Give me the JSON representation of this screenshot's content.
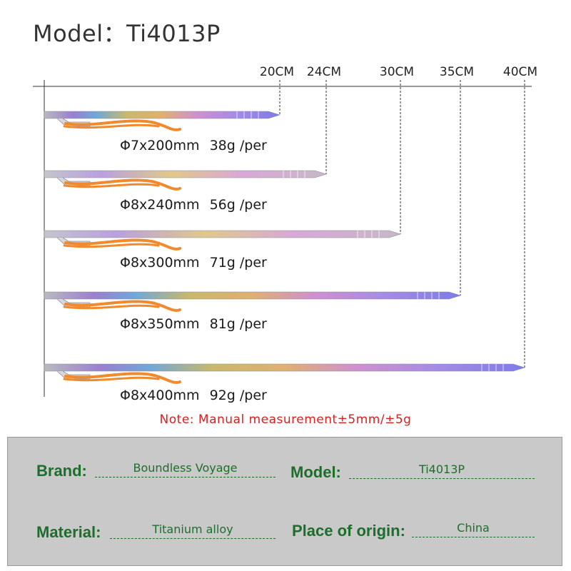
{
  "title": "Model：Ti4013P",
  "ruler": {
    "ticks": [
      "20CM",
      "24CM",
      "30CM",
      "35CM",
      "40CM"
    ]
  },
  "pegs": [
    {
      "spec": "Φ7x200mm",
      "weight": "38g /per"
    },
    {
      "spec": "Φ8x240mm",
      "weight": "56g /per"
    },
    {
      "spec": "Φ8x300mm",
      "weight": "71g /per"
    },
    {
      "spec": "Φ8x350mm",
      "weight": "81g /per"
    },
    {
      "spec": "Φ8x400mm",
      "weight": "92g /per"
    }
  ],
  "note": "Note: Manual measurement±5mm/±5g",
  "specs": {
    "brand_label": "Brand:",
    "brand_value": "Boundless Voyage",
    "model_label": "Model:",
    "model_value": "Ti4013P",
    "material_label": "Material:",
    "material_value": "Titanium alloy",
    "origin_label": "Place of origin:",
    "origin_value": "China"
  },
  "colors": {
    "cord": "#f08a2c",
    "spec_text": "#1e6e2b",
    "note": "#e01d1d",
    "panel": "#c9c9c9"
  }
}
